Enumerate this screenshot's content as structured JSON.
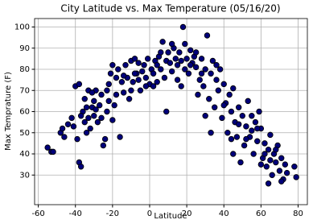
{
  "chart_data": {
    "type": "scatter",
    "title": "City Latitude vs. Max Temperature (05/16/20)",
    "x_label": "Latitude",
    "y_label": "Max Temprature (F)",
    "x": [
      -55,
      -53,
      -52,
      -48,
      -47,
      -46,
      -44,
      -42,
      -41,
      -40,
      -39,
      -38,
      -38,
      -37,
      -36,
      -35,
      -35,
      -34,
      -33,
      -33,
      -32,
      -31,
      -30,
      -30,
      -29,
      -28,
      -27,
      -26,
      -25,
      -24,
      -23,
      -23,
      -22,
      -21,
      -20,
      -20,
      -19,
      -18,
      -17,
      -16,
      -15,
      -14,
      -13,
      -12,
      -11,
      -10,
      -9,
      -8,
      -7,
      -6,
      -5,
      -4,
      -3,
      -2,
      -1,
      0,
      1,
      2,
      3,
      4,
      5,
      6,
      7,
      8,
      9,
      10,
      11,
      12,
      13,
      14,
      15,
      16,
      17,
      18,
      19,
      20,
      21,
      22,
      23,
      24,
      25,
      26,
      27,
      28,
      29,
      30,
      31,
      32,
      33,
      34,
      35,
      36,
      37,
      38,
      39,
      40,
      41,
      42,
      43,
      44,
      45,
      46,
      47,
      48,
      49,
      50,
      51,
      52,
      53,
      54,
      55,
      56,
      57,
      58,
      59,
      60,
      61,
      62,
      63,
      64,
      65,
      66,
      67,
      68,
      69,
      70,
      71,
      72,
      73,
      74,
      78,
      79,
      -37,
      -34,
      -29,
      -26,
      -22,
      -18,
      -14,
      -10,
      -6,
      -2,
      2,
      6,
      9,
      12,
      15,
      19,
      22,
      25,
      28,
      33,
      36,
      40,
      44,
      48,
      52,
      55,
      58,
      62,
      65,
      68,
      71,
      -31,
      -8,
      4,
      17,
      30,
      45,
      60,
      64
    ],
    "values": [
      43,
      41,
      41,
      50,
      52,
      48,
      54,
      57,
      53,
      72,
      47,
      36,
      73,
      34,
      60,
      66,
      55,
      62,
      57,
      70,
      52,
      62,
      65,
      58,
      61,
      55,
      63,
      68,
      44,
      47,
      70,
      60,
      73,
      78,
      82,
      56,
      63,
      76,
      80,
      48,
      74,
      69,
      82,
      76,
      66,
      84,
      74,
      85,
      78,
      83,
      70,
      79,
      82,
      76,
      85,
      73,
      80,
      78,
      84,
      82,
      86,
      80,
      93,
      76,
      84,
      88,
      83,
      79,
      90,
      85,
      82,
      88,
      72,
      100,
      92,
      85,
      78,
      89,
      83,
      86,
      81,
      68,
      75,
      85,
      72,
      80,
      96,
      66,
      78,
      84,
      62,
      75,
      70,
      80,
      57,
      73,
      64,
      50,
      68,
      60,
      71,
      55,
      48,
      62,
      36,
      58,
      44,
      53,
      65,
      48,
      51,
      40,
      55,
      46,
      60,
      52,
      38,
      45,
      34,
      42,
      49,
      30,
      40,
      36,
      44,
      32,
      38,
      28,
      35,
      31,
      34,
      29,
      58,
      50,
      70,
      57,
      65,
      68,
      77,
      70,
      75,
      72,
      72,
      88,
      60,
      92,
      75,
      80,
      82,
      88,
      78,
      50,
      82,
      63,
      47,
      54,
      47,
      58,
      52,
      40,
      37,
      42,
      27,
      69,
      78,
      74,
      84,
      58,
      40,
      35,
      26
    ],
    "color": "#00007a",
    "edge_color": "#000000",
    "xlim": [
      -62,
      85
    ],
    "ylim": [
      16,
      104
    ],
    "xticks": [
      -60,
      -40,
      -20,
      0,
      20,
      40,
      60,
      80
    ],
    "yticks": [
      30,
      40,
      50,
      60,
      70,
      80,
      90,
      100
    ],
    "grid": true
  }
}
